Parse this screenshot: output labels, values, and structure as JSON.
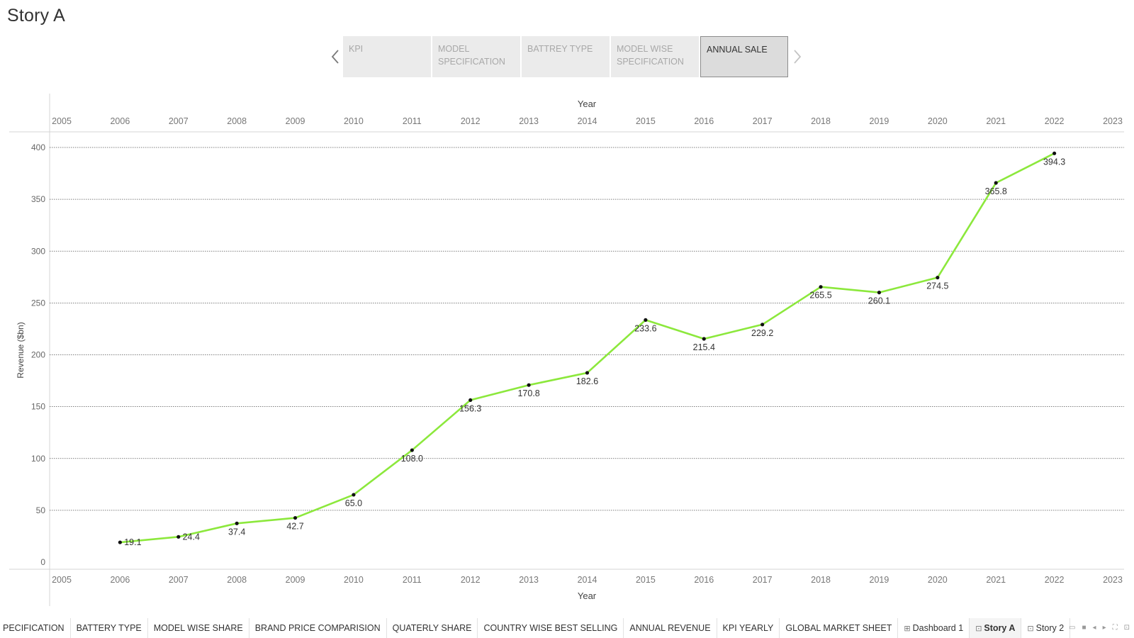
{
  "story": {
    "title": "Story A",
    "points": [
      "KPI",
      "MODEL SPECIFICATION",
      "BATTREY TYPE",
      "MODEL WISE SPECIFICATION",
      "ANNUAL SALE"
    ],
    "active_point": "ANNUAL SALE"
  },
  "chart_data": {
    "type": "line",
    "x_axis_title": "Year",
    "y_axis_title": "Revenue ($bn)",
    "x_ticks": [
      "2005",
      "2006",
      "2007",
      "2008",
      "2009",
      "2010",
      "2011",
      "2012",
      "2013",
      "2014",
      "2015",
      "2016",
      "2017",
      "2018",
      "2019",
      "2020",
      "2021",
      "2022",
      "2023"
    ],
    "y_ticks": [
      "0",
      "50",
      "100",
      "150",
      "200",
      "250",
      "300",
      "350",
      "400"
    ],
    "xlim": [
      2005,
      2023
    ],
    "ylim": [
      0,
      400
    ],
    "x": [
      2006,
      2007,
      2008,
      2009,
      2010,
      2011,
      2012,
      2013,
      2014,
      2015,
      2016,
      2017,
      2018,
      2019,
      2020,
      2021,
      2022
    ],
    "values": [
      19.1,
      24.4,
      37.4,
      42.7,
      65.0,
      108.0,
      156.3,
      170.8,
      182.6,
      233.6,
      215.4,
      229.2,
      265.5,
      260.1,
      274.5,
      365.8,
      394.3
    ],
    "labels": [
      "19.1",
      "24.4",
      "37.4",
      "42.7",
      "65.0",
      "108.0",
      "156.3",
      "170.8",
      "182.6",
      "233.6",
      "215.4",
      "229.2",
      "265.5",
      "260.1",
      "274.5",
      "365.8",
      "394.3"
    ],
    "line_color": "#8ce83c",
    "grid": true,
    "grid_style": "dotted horizontal"
  },
  "bottom_tabs": [
    {
      "label": "PECIFICATION",
      "icon": ""
    },
    {
      "label": "BATTERY TYPE",
      "icon": ""
    },
    {
      "label": "MODEL WISE SHARE",
      "icon": ""
    },
    {
      "label": "BRAND PRICE COMPARISION",
      "icon": ""
    },
    {
      "label": "QUATERLY SHARE",
      "icon": ""
    },
    {
      "label": "COUNTRY WISE BEST SELLING",
      "icon": ""
    },
    {
      "label": "ANNUAL REVENUE",
      "icon": ""
    },
    {
      "label": "KPI YEARLY",
      "icon": ""
    },
    {
      "label": "GLOBAL MARKET SHEET",
      "icon": ""
    },
    {
      "label": "Dashboard 1",
      "icon": "dashboard-icon"
    },
    {
      "label": "Story A",
      "icon": "story-icon"
    },
    {
      "label": "Story 2",
      "icon": "story-icon"
    }
  ],
  "active_tab": "Story A",
  "colors": {
    "accent_line": "#8ce83c",
    "active_point_bg": "#dcdcdc",
    "inactive_point_bg": "#ebebeb"
  }
}
